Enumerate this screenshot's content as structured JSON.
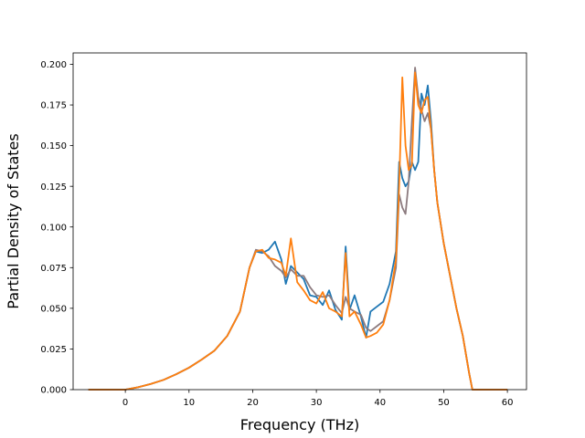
{
  "chart_data": {
    "type": "line",
    "title": "",
    "xlabel": "Frequency (THz)",
    "ylabel": "Partial Density of States",
    "xlim": [
      -8.2,
      63.0
    ],
    "ylim": [
      0.0,
      0.207
    ],
    "xticks": [
      0,
      10,
      20,
      30,
      40,
      50,
      60
    ],
    "yticks": [
      0.0,
      0.025,
      0.05,
      0.075,
      0.1,
      0.125,
      0.15,
      0.175,
      0.2
    ],
    "ytick_labels": [
      "0.000",
      "0.025",
      "0.050",
      "0.075",
      "0.100",
      "0.125",
      "0.150",
      "0.175",
      "0.200"
    ],
    "grid": false,
    "series": [
      {
        "color": "#1f77b4",
        "x": [
          -5.8,
          0,
          2,
          4,
          6,
          8,
          10,
          12,
          14,
          16,
          18,
          19.5,
          20.5,
          21.5,
          22.5,
          23.5,
          24.5,
          25.2,
          26,
          27,
          28,
          29,
          30,
          31,
          32,
          33,
          34,
          34.6,
          35.2,
          36,
          37,
          37.8,
          38.5,
          39.5,
          40.5,
          41.5,
          42.5,
          43,
          43.5,
          44,
          44.5,
          45,
          45.5,
          46,
          46.5,
          47,
          47.5,
          48,
          48.5,
          49,
          50,
          51,
          52,
          53,
          54,
          54.5,
          55,
          60
        ],
        "y": [
          0,
          0,
          0.0015,
          0.0035,
          0.006,
          0.0095,
          0.0135,
          0.0185,
          0.024,
          0.033,
          0.048,
          0.075,
          0.085,
          0.084,
          0.086,
          0.091,
          0.08,
          0.065,
          0.076,
          0.072,
          0.068,
          0.058,
          0.057,
          0.052,
          0.061,
          0.049,
          0.043,
          0.088,
          0.049,
          0.058,
          0.045,
          0.032,
          0.048,
          0.051,
          0.054,
          0.065,
          0.085,
          0.14,
          0.13,
          0.125,
          0.128,
          0.14,
          0.135,
          0.14,
          0.182,
          0.175,
          0.187,
          0.165,
          0.135,
          0.115,
          0.09,
          0.07,
          0.05,
          0.033,
          0.01,
          0.0,
          0,
          0
        ]
      },
      {
        "color": "#8c7b7f",
        "x": [
          -5.8,
          0,
          2,
          4,
          6,
          8,
          10,
          12,
          14,
          16,
          18,
          19.5,
          20.5,
          21.5,
          22.5,
          23.5,
          24.5,
          25.2,
          26,
          27,
          28,
          29,
          30,
          31,
          32,
          33,
          34,
          34.6,
          35.2,
          36,
          37,
          37.8,
          38.5,
          39.5,
          40.5,
          41.5,
          42.5,
          43,
          43.5,
          44,
          44.5,
          45,
          45.5,
          46,
          46.5,
          47,
          47.5,
          48,
          48.5,
          49,
          50,
          51,
          52,
          53,
          54,
          54.5,
          55,
          60
        ],
        "y": [
          0,
          0,
          0.0015,
          0.0035,
          0.006,
          0.0095,
          0.0135,
          0.0185,
          0.024,
          0.033,
          0.048,
          0.075,
          0.086,
          0.085,
          0.082,
          0.076,
          0.073,
          0.069,
          0.074,
          0.07,
          0.07,
          0.063,
          0.058,
          0.057,
          0.058,
          0.052,
          0.047,
          0.057,
          0.05,
          0.048,
          0.046,
          0.038,
          0.036,
          0.039,
          0.042,
          0.055,
          0.075,
          0.12,
          0.112,
          0.108,
          0.128,
          0.165,
          0.198,
          0.18,
          0.172,
          0.165,
          0.17,
          0.16,
          0.135,
          0.115,
          0.09,
          0.07,
          0.05,
          0.033,
          0.01,
          0.0,
          0,
          0
        ]
      },
      {
        "color": "#ff7f0e",
        "x": [
          -5.8,
          0,
          2,
          4,
          6,
          8,
          10,
          12,
          14,
          16,
          18,
          19.5,
          20.5,
          21.5,
          22.5,
          23.5,
          24.5,
          25.2,
          26,
          27,
          28,
          29,
          30,
          31,
          32,
          33,
          34,
          34.6,
          35.2,
          36,
          37,
          37.8,
          38.5,
          39.5,
          40.5,
          41.5,
          42.5,
          43,
          43.5,
          44,
          44.5,
          45,
          45.5,
          46,
          46.5,
          47,
          47.5,
          48,
          48.5,
          49,
          50,
          51,
          52,
          53,
          54,
          54.5,
          55,
          60
        ],
        "y": [
          0,
          0,
          0.0015,
          0.0035,
          0.006,
          0.0095,
          0.0135,
          0.0185,
          0.024,
          0.033,
          0.048,
          0.075,
          0.085,
          0.086,
          0.081,
          0.08,
          0.078,
          0.07,
          0.093,
          0.066,
          0.061,
          0.055,
          0.053,
          0.06,
          0.05,
          0.048,
          0.045,
          0.084,
          0.045,
          0.048,
          0.04,
          0.032,
          0.033,
          0.035,
          0.04,
          0.055,
          0.08,
          0.125,
          0.192,
          0.15,
          0.135,
          0.138,
          0.195,
          0.175,
          0.17,
          0.178,
          0.18,
          0.16,
          0.135,
          0.115,
          0.09,
          0.07,
          0.05,
          0.033,
          0.01,
          0.0,
          0,
          0
        ]
      }
    ]
  }
}
